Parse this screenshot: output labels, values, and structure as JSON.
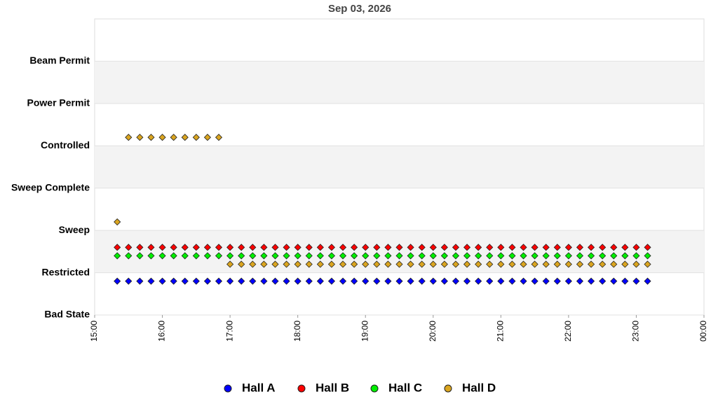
{
  "chart_data": {
    "type": "scatter",
    "title": "Sep 03, 2026",
    "x": [
      920,
      930,
      940,
      950,
      960,
      970,
      980,
      990,
      1000,
      1010,
      1020,
      1030,
      1040,
      1050,
      1060,
      1070,
      1080,
      1090,
      1100,
      1110,
      1120,
      1130,
      1140,
      1150,
      1160,
      1170,
      1180,
      1190,
      1200,
      1210,
      1220,
      1230,
      1240,
      1250,
      1260,
      1270,
      1280,
      1290,
      1300,
      1310,
      1320,
      1330,
      1340,
      1350,
      1360,
      1370,
      1380,
      1390
    ],
    "xlim": [
      900,
      1440
    ],
    "xticks": [
      {
        "value": 900,
        "label": "15:00"
      },
      {
        "value": 960,
        "label": "16:00"
      },
      {
        "value": 1020,
        "label": "17:00"
      },
      {
        "value": 1080,
        "label": "18:00"
      },
      {
        "value": 1140,
        "label": "19:00"
      },
      {
        "value": 1200,
        "label": "20:00"
      },
      {
        "value": 1260,
        "label": "21:00"
      },
      {
        "value": 1320,
        "label": "22:00"
      },
      {
        "value": 1380,
        "label": "23:00"
      },
      {
        "value": 1440,
        "label": "00:00"
      }
    ],
    "ylim": [
      0,
      7
    ],
    "yticks": [
      {
        "value": 0,
        "label": "Bad State"
      },
      {
        "value": 1,
        "label": "Restricted"
      },
      {
        "value": 2,
        "label": "Sweep"
      },
      {
        "value": 3,
        "label": "Sweep Complete"
      },
      {
        "value": 4,
        "label": "Controlled"
      },
      {
        "value": 5,
        "label": "Power Permit"
      },
      {
        "value": 6,
        "label": "Beam Permit"
      }
    ],
    "grid": true,
    "legend": "bottom",
    "series": [
      {
        "name": "Hall A",
        "color": "#0000ff",
        "values": [
          0.8,
          0.8,
          0.8,
          0.8,
          0.8,
          0.8,
          0.8,
          0.8,
          0.8,
          0.8,
          0.8,
          0.8,
          0.8,
          0.8,
          0.8,
          0.8,
          0.8,
          0.8,
          0.8,
          0.8,
          0.8,
          0.8,
          0.8,
          0.8,
          0.8,
          0.8,
          0.8,
          0.8,
          0.8,
          0.8,
          0.8,
          0.8,
          0.8,
          0.8,
          0.8,
          0.8,
          0.8,
          0.8,
          0.8,
          0.8,
          0.8,
          0.8,
          0.8,
          0.8,
          0.8,
          0.8,
          0.8,
          0.8
        ]
      },
      {
        "name": "Hall B",
        "color": "#ff0000",
        "values": [
          1.6,
          1.6,
          1.6,
          1.6,
          1.6,
          1.6,
          1.6,
          1.6,
          1.6,
          1.6,
          1.6,
          1.6,
          1.6,
          1.6,
          1.6,
          1.6,
          1.6,
          1.6,
          1.6,
          1.6,
          1.6,
          1.6,
          1.6,
          1.6,
          1.6,
          1.6,
          1.6,
          1.6,
          1.6,
          1.6,
          1.6,
          1.6,
          1.6,
          1.6,
          1.6,
          1.6,
          1.6,
          1.6,
          1.6,
          1.6,
          1.6,
          1.6,
          1.6,
          1.6,
          1.6,
          1.6,
          1.6,
          1.6
        ]
      },
      {
        "name": "Hall C",
        "color": "#00ee00",
        "values": [
          1.4,
          1.4,
          1.4,
          1.4,
          1.4,
          1.4,
          1.4,
          1.4,
          1.4,
          1.4,
          1.4,
          1.4,
          1.4,
          1.4,
          1.4,
          1.4,
          1.4,
          1.4,
          1.4,
          1.4,
          1.4,
          1.4,
          1.4,
          1.4,
          1.4,
          1.4,
          1.4,
          1.4,
          1.4,
          1.4,
          1.4,
          1.4,
          1.4,
          1.4,
          1.4,
          1.4,
          1.4,
          1.4,
          1.4,
          1.4,
          1.4,
          1.4,
          1.4,
          1.4,
          1.4,
          1.4,
          1.4,
          1.4
        ]
      },
      {
        "name": "Hall D",
        "color": "#daa520",
        "values": [
          2.2,
          4.2,
          4.2,
          4.2,
          4.2,
          4.2,
          4.2,
          4.2,
          4.2,
          4.2,
          1.2,
          1.2,
          1.2,
          1.2,
          1.2,
          1.2,
          1.2,
          1.2,
          1.2,
          1.2,
          1.2,
          1.2,
          1.2,
          1.2,
          1.2,
          1.2,
          1.2,
          1.2,
          1.2,
          1.2,
          1.2,
          1.2,
          1.2,
          1.2,
          1.2,
          1.2,
          1.2,
          1.2,
          1.2,
          1.2,
          1.2,
          1.2,
          1.2,
          1.2,
          1.2,
          1.2,
          1.2,
          1.2
        ]
      }
    ]
  }
}
